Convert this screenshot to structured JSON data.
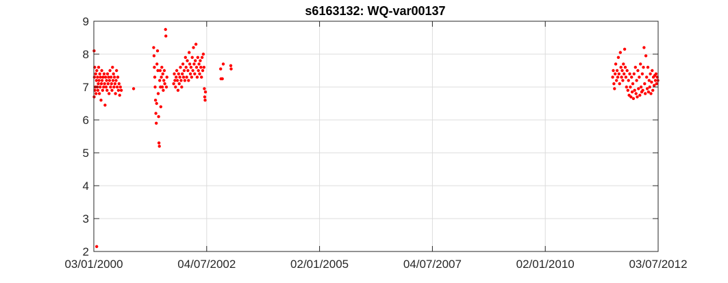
{
  "chart_data": {
    "type": "scatter",
    "title": "s6163132: WQ-var00137",
    "xlabel": "",
    "ylabel": "",
    "x_axis_kind": "date",
    "xlim": [
      "2000-01-03",
      "2012-07-03"
    ],
    "ylim": [
      2,
      9
    ],
    "x_ticks": [
      "2000-01-03",
      "2002-07-04",
      "2005-01-02",
      "2007-07-04",
      "2010-01-02",
      "2012-07-03"
    ],
    "x_tick_labels": [
      "03/01/2000",
      "04/07/2002",
      "02/01/2005",
      "04/07/2007",
      "02/01/2010",
      "03/07/2012"
    ],
    "y_ticks": [
      2,
      3,
      4,
      5,
      6,
      7,
      8,
      9
    ],
    "y_tick_labels": [
      "2",
      "3",
      "4",
      "5",
      "6",
      "7",
      "8",
      "9"
    ],
    "grid": true,
    "legend": "none",
    "marker_color": "#ff0000",
    "series": [
      {
        "points": [
          [
            "2000-01-05",
            8.1
          ],
          [
            "2000-01-06",
            6.7
          ],
          [
            "2000-01-08",
            7.3
          ],
          [
            "2000-01-10",
            7.6
          ],
          [
            "2000-01-12",
            6.9
          ],
          [
            "2000-01-15",
            7.0
          ],
          [
            "2000-01-18",
            7.4
          ],
          [
            "2000-01-21",
            6.8
          ],
          [
            "2000-01-24",
            7.2
          ],
          [
            "2000-01-27",
            7.5
          ],
          [
            "2000-01-30",
            7.0
          ],
          [
            "2000-02-02",
            7.3
          ],
          [
            "2000-02-05",
            6.9
          ],
          [
            "2000-02-08",
            7.1
          ],
          [
            "2000-02-11",
            7.6
          ],
          [
            "2000-02-14",
            7.2
          ],
          [
            "2000-02-17",
            6.8
          ],
          [
            "2000-02-20",
            7.4
          ],
          [
            "2000-02-23",
            7.0
          ],
          [
            "2000-02-26",
            7.3
          ],
          [
            "2000-03-01",
            6.6
          ],
          [
            "2000-03-04",
            7.1
          ],
          [
            "2000-03-07",
            7.5
          ],
          [
            "2000-03-10",
            7.2
          ],
          [
            "2000-03-14",
            6.9
          ],
          [
            "2000-03-18",
            7.3
          ],
          [
            "2000-03-22",
            7.0
          ],
          [
            "2000-03-26",
            7.4
          ],
          [
            "2000-03-30",
            7.1
          ],
          [
            "2000-04-03",
            6.45
          ],
          [
            "2000-04-07",
            7.3
          ],
          [
            "2000-04-11",
            7.0
          ],
          [
            "2000-04-15",
            7.2
          ],
          [
            "2000-04-19",
            6.9
          ],
          [
            "2000-04-23",
            7.4
          ],
          [
            "2000-04-27",
            7.1
          ],
          [
            "2000-05-01",
            7.3
          ],
          [
            "2000-05-05",
            6.8
          ],
          [
            "2000-05-09",
            7.2
          ],
          [
            "2000-05-13",
            7.5
          ],
          [
            "2000-05-17",
            7.0
          ],
          [
            "2000-05-21",
            7.3
          ],
          [
            "2000-05-25",
            7.1
          ],
          [
            "2000-05-29",
            6.9
          ],
          [
            "2000-06-02",
            7.6
          ],
          [
            "2000-06-06",
            7.2
          ],
          [
            "2000-06-10",
            7.4
          ],
          [
            "2000-06-14",
            7.0
          ],
          [
            "2000-06-18",
            7.3
          ],
          [
            "2000-06-22",
            7.1
          ],
          [
            "2000-06-26",
            6.8
          ],
          [
            "2000-07-01",
            7.2
          ],
          [
            "2000-07-05",
            7.5
          ],
          [
            "2000-07-10",
            7.0
          ],
          [
            "2000-07-15",
            7.3
          ],
          [
            "2000-07-20",
            6.9
          ],
          [
            "2000-07-25",
            7.1
          ],
          [
            "2000-07-30",
            6.75
          ],
          [
            "2000-08-05",
            7.0
          ],
          [
            "2000-08-12",
            6.9
          ],
          [
            "2000-01-26",
            2.15
          ],
          [
            "2000-11-20",
            6.95
          ],
          [
            "2001-05-01",
            8.2
          ],
          [
            "2001-05-04",
            7.95
          ],
          [
            "2001-05-07",
            7.6
          ],
          [
            "2001-05-10",
            7.3
          ],
          [
            "2001-05-13",
            7.0
          ],
          [
            "2001-05-16",
            6.6
          ],
          [
            "2001-05-19",
            6.2
          ],
          [
            "2001-05-22",
            5.9
          ],
          [
            "2001-05-25",
            6.5
          ],
          [
            "2001-05-28",
            7.7
          ],
          [
            "2001-06-01",
            8.1
          ],
          [
            "2001-06-04",
            7.5
          ],
          [
            "2001-06-07",
            6.8
          ],
          [
            "2001-06-10",
            6.1
          ],
          [
            "2001-06-13",
            5.3
          ],
          [
            "2001-06-16",
            5.2
          ],
          [
            "2001-06-19",
            7.2
          ],
          [
            "2001-06-22",
            7.5
          ],
          [
            "2001-06-25",
            7.0
          ],
          [
            "2001-06-28",
            6.4
          ],
          [
            "2001-07-02",
            7.3
          ],
          [
            "2001-07-06",
            7.6
          ],
          [
            "2001-07-10",
            7.0
          ],
          [
            "2001-07-14",
            7.4
          ],
          [
            "2001-07-18",
            6.9
          ],
          [
            "2001-07-22",
            7.2
          ],
          [
            "2001-07-26",
            7.5
          ],
          [
            "2001-07-30",
            7.1
          ],
          [
            "2001-08-05",
            8.75
          ],
          [
            "2001-08-08",
            8.55
          ],
          [
            "2001-08-12",
            7.0
          ],
          [
            "2001-08-16",
            7.3
          ],
          [
            "2001-10-10",
            7.1
          ],
          [
            "2001-10-15",
            7.4
          ],
          [
            "2001-10-20",
            7.2
          ],
          [
            "2001-10-25",
            7.0
          ],
          [
            "2001-10-30",
            7.3
          ],
          [
            "2001-11-04",
            7.5
          ],
          [
            "2001-11-09",
            7.2
          ],
          [
            "2001-11-14",
            6.9
          ],
          [
            "2001-11-19",
            7.4
          ],
          [
            "2001-11-24",
            7.1
          ],
          [
            "2001-11-29",
            7.3
          ],
          [
            "2001-12-04",
            7.6
          ],
          [
            "2001-12-09",
            7.2
          ],
          [
            "2001-12-14",
            7.0
          ],
          [
            "2001-12-19",
            7.4
          ],
          [
            "2001-12-24",
            7.7
          ],
          [
            "2001-12-29",
            7.3
          ],
          [
            "2002-01-03",
            7.5
          ],
          [
            "2002-01-08",
            7.2
          ],
          [
            "2002-01-13",
            7.9
          ],
          [
            "2002-01-18",
            7.6
          ],
          [
            "2002-01-23",
            7.3
          ],
          [
            "2002-01-28",
            7.8
          ],
          [
            "2002-02-02",
            7.5
          ],
          [
            "2002-02-07",
            7.2
          ],
          [
            "2002-02-12",
            8.05
          ],
          [
            "2002-02-17",
            7.7
          ],
          [
            "2002-02-22",
            7.4
          ],
          [
            "2002-02-27",
            7.6
          ],
          [
            "2002-03-04",
            7.3
          ],
          [
            "2002-03-09",
            7.9
          ],
          [
            "2002-03-14",
            7.5
          ],
          [
            "2002-03-19",
            8.2
          ],
          [
            "2002-03-24",
            7.7
          ],
          [
            "2002-03-29",
            7.4
          ],
          [
            "2002-04-03",
            7.8
          ],
          [
            "2002-04-08",
            8.3
          ],
          [
            "2002-04-13",
            7.6
          ],
          [
            "2002-04-18",
            7.3
          ],
          [
            "2002-04-23",
            7.9
          ],
          [
            "2002-04-28",
            7.5
          ],
          [
            "2002-05-03",
            7.7
          ],
          [
            "2002-05-08",
            7.4
          ],
          [
            "2002-05-13",
            7.8
          ],
          [
            "2002-05-18",
            7.6
          ],
          [
            "2002-05-23",
            7.3
          ],
          [
            "2002-05-28",
            7.9
          ],
          [
            "2002-06-02",
            7.5
          ],
          [
            "2002-06-07",
            8.0
          ],
          [
            "2002-06-12",
            7.6
          ],
          [
            "2002-06-15",
            6.95
          ],
          [
            "2002-06-18",
            6.7
          ],
          [
            "2002-06-21",
            6.6
          ],
          [
            "2002-06-24",
            6.85
          ],
          [
            "2002-10-25",
            7.55
          ],
          [
            "2002-10-28",
            7.25
          ],
          [
            "2002-11-08",
            7.25
          ],
          [
            "2002-11-15",
            7.7
          ],
          [
            "2003-01-15",
            7.65
          ],
          [
            "2003-01-18",
            7.55
          ],
          [
            "2011-07-01",
            7.3
          ],
          [
            "2011-07-06",
            7.5
          ],
          [
            "2011-07-11",
            7.1
          ],
          [
            "2011-07-16",
            6.95
          ],
          [
            "2011-07-21",
            7.4
          ],
          [
            "2011-07-26",
            7.7
          ],
          [
            "2011-08-01",
            7.2
          ],
          [
            "2011-08-06",
            7.5
          ],
          [
            "2011-08-11",
            7.3
          ],
          [
            "2011-08-16",
            7.9
          ],
          [
            "2011-08-21",
            7.4
          ],
          [
            "2011-08-26",
            7.1
          ],
          [
            "2011-09-01",
            8.05
          ],
          [
            "2011-09-06",
            7.6
          ],
          [
            "2011-09-11",
            7.3
          ],
          [
            "2011-09-16",
            7.5
          ],
          [
            "2011-09-21",
            7.2
          ],
          [
            "2011-09-26",
            7.7
          ],
          [
            "2011-10-01",
            7.4
          ],
          [
            "2011-10-06",
            8.15
          ],
          [
            "2011-10-11",
            7.6
          ],
          [
            "2011-10-16",
            7.3
          ],
          [
            "2011-10-21",
            7.0
          ],
          [
            "2011-10-26",
            7.5
          ],
          [
            "2011-11-01",
            6.9
          ],
          [
            "2011-11-06",
            7.2
          ],
          [
            "2011-11-11",
            6.75
          ],
          [
            "2011-11-16",
            7.4
          ],
          [
            "2011-11-21",
            7.0
          ],
          [
            "2011-11-26",
            6.7
          ],
          [
            "2011-12-01",
            7.3
          ],
          [
            "2011-12-06",
            6.85
          ],
          [
            "2011-12-11",
            7.1
          ],
          [
            "2011-12-16",
            6.65
          ],
          [
            "2011-12-21",
            7.4
          ],
          [
            "2011-12-26",
            6.9
          ],
          [
            "2012-01-01",
            7.6
          ],
          [
            "2012-01-06",
            6.8
          ],
          [
            "2012-01-11",
            7.2
          ],
          [
            "2012-01-16",
            6.7
          ],
          [
            "2012-01-21",
            7.5
          ],
          [
            "2012-01-26",
            6.95
          ],
          [
            "2012-02-01",
            7.3
          ],
          [
            "2012-02-06",
            6.75
          ],
          [
            "2012-02-11",
            7.7
          ],
          [
            "2012-02-16",
            7.0
          ],
          [
            "2012-02-21",
            6.85
          ],
          [
            "2012-02-26",
            7.4
          ],
          [
            "2012-03-01",
            6.9
          ],
          [
            "2012-03-06",
            7.6
          ],
          [
            "2012-03-11",
            8.2
          ],
          [
            "2012-03-16",
            7.1
          ],
          [
            "2012-03-21",
            6.8
          ],
          [
            "2012-03-26",
            7.95
          ],
          [
            "2012-04-01",
            7.3
          ],
          [
            "2012-04-06",
            6.95
          ],
          [
            "2012-04-11",
            7.6
          ],
          [
            "2012-04-16",
            6.85
          ],
          [
            "2012-04-21",
            7.2
          ],
          [
            "2012-04-26",
            7.0
          ],
          [
            "2012-05-01",
            7.4
          ],
          [
            "2012-05-06",
            6.8
          ],
          [
            "2012-05-11",
            7.15
          ],
          [
            "2012-05-16",
            7.5
          ],
          [
            "2012-05-21",
            6.9
          ],
          [
            "2012-05-26",
            7.3
          ],
          [
            "2012-06-01",
            7.05
          ],
          [
            "2012-06-06",
            7.35
          ],
          [
            "2012-06-11",
            7.2
          ],
          [
            "2012-06-16",
            7.4
          ],
          [
            "2012-06-21",
            7.1
          ],
          [
            "2012-06-26",
            7.3
          ],
          [
            "2012-07-01",
            7.2
          ]
        ]
      }
    ]
  }
}
